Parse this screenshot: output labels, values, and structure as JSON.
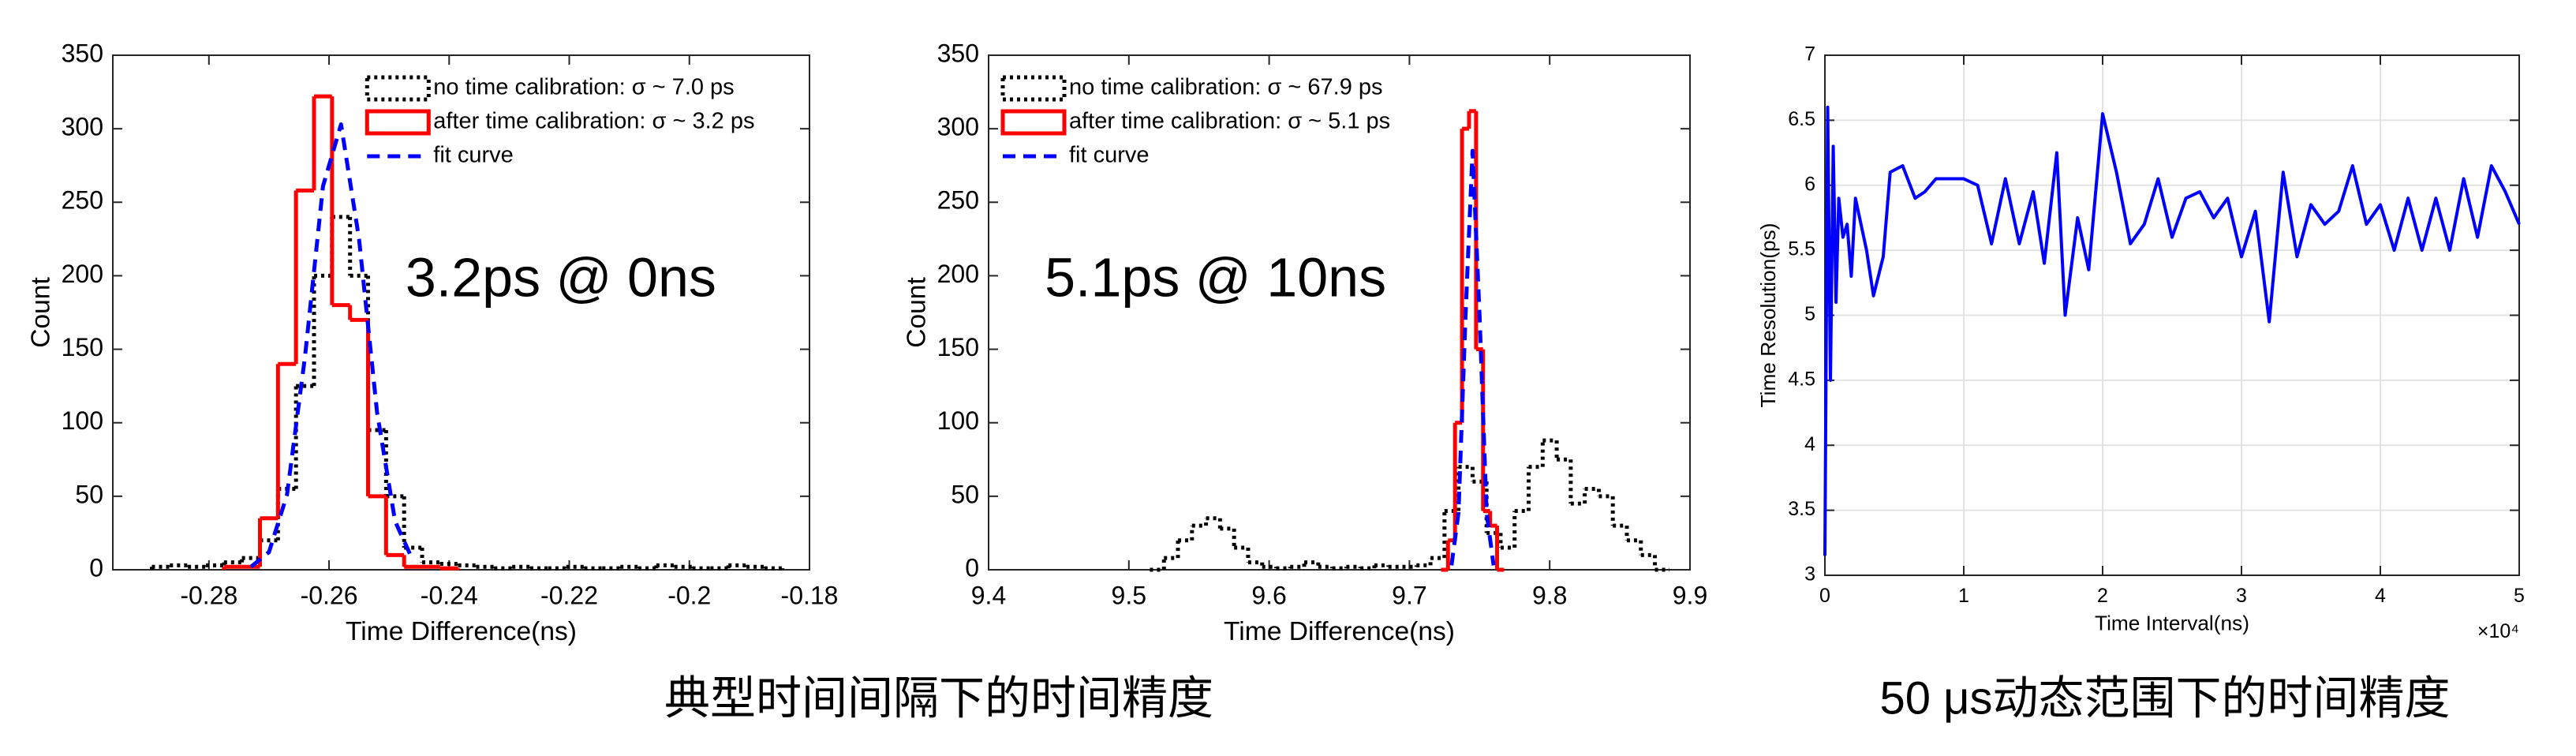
{
  "chart_data": [
    {
      "type": "step",
      "xlabel": "Time Difference(ns)",
      "ylabel": "Count",
      "xlim": [
        -0.296,
        -0.18
      ],
      "xticks": [
        -0.28,
        -0.26,
        -0.24,
        -0.22,
        -0.2,
        -0.18
      ],
      "ylim": [
        0,
        350
      ],
      "yticks": [
        0,
        50,
        100,
        150,
        200,
        250,
        300,
        350
      ],
      "grid": false,
      "legend": "upper right",
      "annotation": {
        "text": "3.2ps @ 0ns",
        "color": "#0000ff"
      },
      "series": [
        {
          "name": "no time calibration: σ ~ 7.0 ps",
          "color": "#000000",
          "style": "dotted",
          "drawstyle": "steps",
          "x": [
            -0.288,
            -0.285,
            -0.282,
            -0.279,
            -0.276,
            -0.273,
            -0.27,
            -0.267,
            -0.264,
            -0.261,
            -0.258,
            -0.255,
            -0.252,
            -0.249,
            -0.246,
            -0.243,
            -0.24,
            -0.237,
            -0.234,
            -0.231,
            -0.228,
            -0.225,
            -0.222,
            -0.219,
            -0.216,
            -0.213,
            -0.21,
            -0.207,
            -0.204,
            -0.201,
            -0.198,
            -0.195,
            -0.192,
            -0.189,
            -0.186
          ],
          "values": [
            2,
            3,
            2,
            3,
            5,
            8,
            20,
            55,
            125,
            200,
            240,
            200,
            95,
            50,
            15,
            5,
            4,
            3,
            2,
            1,
            2,
            1,
            1,
            2,
            1,
            1,
            2,
            1,
            3,
            2,
            1,
            1,
            3,
            2,
            1
          ]
        },
        {
          "name": "after time calibration: σ ~ 3.2 ps",
          "color": "#ff0000",
          "style": "solid",
          "drawstyle": "steps",
          "x": [
            -0.276,
            -0.273,
            -0.27,
            -0.267,
            -0.264,
            -0.261,
            -0.258,
            -0.255,
            -0.252,
            -0.249,
            -0.246,
            -0.243,
            -0.24
          ],
          "values": [
            2,
            2,
            35,
            140,
            258,
            322,
            180,
            170,
            50,
            10,
            2,
            2,
            1
          ]
        },
        {
          "name": "fit curve",
          "color": "#0000ff",
          "style": "dashed",
          "drawstyle": "line",
          "x": [
            -0.273,
            -0.27,
            -0.267,
            -0.264,
            -0.261,
            -0.258,
            -0.255,
            -0.252,
            -0.249,
            -0.246
          ],
          "values": [
            2,
            12,
            51,
            145,
            261,
            303,
            225,
            107,
            33,
            6
          ]
        }
      ]
    },
    {
      "type": "step",
      "xlabel": "Time Difference(ns)",
      "ylabel": "Count",
      "xlim": [
        9.4,
        9.9
      ],
      "xticks": [
        9.4,
        9.5,
        9.6,
        9.7,
        9.8,
        9.9
      ],
      "ylim": [
        0,
        350
      ],
      "yticks": [
        0,
        50,
        100,
        150,
        200,
        250,
        300,
        350
      ],
      "grid": false,
      "legend": "upper left",
      "annotation": {
        "text": "5.1ps @ 10ns",
        "color": "#0000ff"
      },
      "series": [
        {
          "name": "no time calibration: σ ~ 67.9 ps",
          "color": "#000000",
          "style": "dotted",
          "drawstyle": "steps",
          "x": [
            9.52,
            9.53,
            9.54,
            9.55,
            9.56,
            9.57,
            9.58,
            9.59,
            9.6,
            9.61,
            9.62,
            9.63,
            9.64,
            9.65,
            9.66,
            9.67,
            9.68,
            9.69,
            9.7,
            9.71,
            9.72,
            9.73,
            9.74,
            9.75,
            9.76,
            9.77,
            9.78,
            9.79,
            9.8,
            9.81,
            9.82,
            9.83,
            9.84,
            9.85,
            9.86,
            9.87,
            9.88
          ],
          "values": [
            0,
            8,
            20,
            30,
            35,
            28,
            15,
            5,
            2,
            1,
            2,
            5,
            2,
            1,
            2,
            1,
            3,
            2,
            2,
            3,
            8,
            40,
            70,
            60,
            25,
            15,
            40,
            70,
            88,
            75,
            45,
            55,
            50,
            30,
            20,
            10,
            0
          ]
        },
        {
          "name": "after time calibration: σ ~ 5.1 ps",
          "color": "#ff0000",
          "style": "solid",
          "drawstyle": "steps",
          "x": [
            9.725,
            9.73,
            9.735,
            9.74,
            9.745,
            9.75,
            9.755,
            9.76,
            9.765
          ],
          "values": [
            0,
            20,
            100,
            300,
            312,
            150,
            40,
            30,
            0
          ]
        },
        {
          "name": "fit curve",
          "color": "#0000ff",
          "style": "dashed",
          "drawstyle": "line",
          "x": [
            9.73,
            9.735,
            9.74,
            9.745,
            9.75,
            9.755,
            9.76
          ],
          "values": [
            3,
            39,
            173,
            285,
            173,
            39,
            3
          ]
        }
      ]
    },
    {
      "type": "line",
      "xlabel": "Time Interval(ns)",
      "ylabel": "Time Resolution(ps)",
      "x_exponent_label": "×10⁴",
      "xlim": [
        0,
        50000
      ],
      "xticks": [
        0,
        {
          "value": 10000,
          "label": "1"
        },
        {
          "value": 20000,
          "label": "2"
        },
        {
          "value": 30000,
          "label": "3"
        },
        {
          "value": 40000,
          "label": "4"
        },
        {
          "value": 50000,
          "label": "5"
        }
      ],
      "ylim": [
        3,
        7
      ],
      "yticks": [
        3,
        3.5,
        4,
        4.5,
        5,
        5.5,
        6,
        6.5,
        7
      ],
      "grid": true,
      "color": "#0000ff",
      "x": [
        0,
        200,
        400,
        600,
        800,
        1000,
        1300,
        1600,
        1900,
        2200,
        3000,
        3500,
        4200,
        4700,
        5600,
        6500,
        7200,
        8000,
        9000,
        10000,
        11000,
        12000,
        13000,
        14000,
        15000,
        15800,
        16700,
        17300,
        18200,
        19000,
        20000,
        21000,
        22000,
        23000,
        24000,
        25000,
        26000,
        27000,
        28000,
        29000,
        30000,
        31000,
        32000,
        33000,
        34000,
        35000,
        36000,
        37000,
        38000,
        39000,
        40000,
        41000,
        42000,
        43000,
        44000,
        45000,
        46000,
        47000,
        48000,
        49000,
        50000
      ],
      "values": [
        3.15,
        6.6,
        4.5,
        6.3,
        5.1,
        5.9,
        5.6,
        5.7,
        5.3,
        5.9,
        5.5,
        5.15,
        5.45,
        6.1,
        6.15,
        5.9,
        5.95,
        6.05,
        6.05,
        6.05,
        6.0,
        5.55,
        6.05,
        5.55,
        5.95,
        5.4,
        6.25,
        5.0,
        5.75,
        5.35,
        6.55,
        6.1,
        5.55,
        5.7,
        6.05,
        5.6,
        5.9,
        5.95,
        5.75,
        5.9,
        5.45,
        5.8,
        4.95,
        6.1,
        5.45,
        5.85,
        5.7,
        5.8,
        6.15,
        5.7,
        5.85,
        5.5,
        5.9,
        5.5,
        5.9,
        5.5,
        6.05,
        5.6,
        6.15,
        5.95,
        5.7
      ]
    }
  ],
  "captions": [
    "典型时间间隔下的时间精度",
    "50 μs动态范围下的时间精度"
  ]
}
